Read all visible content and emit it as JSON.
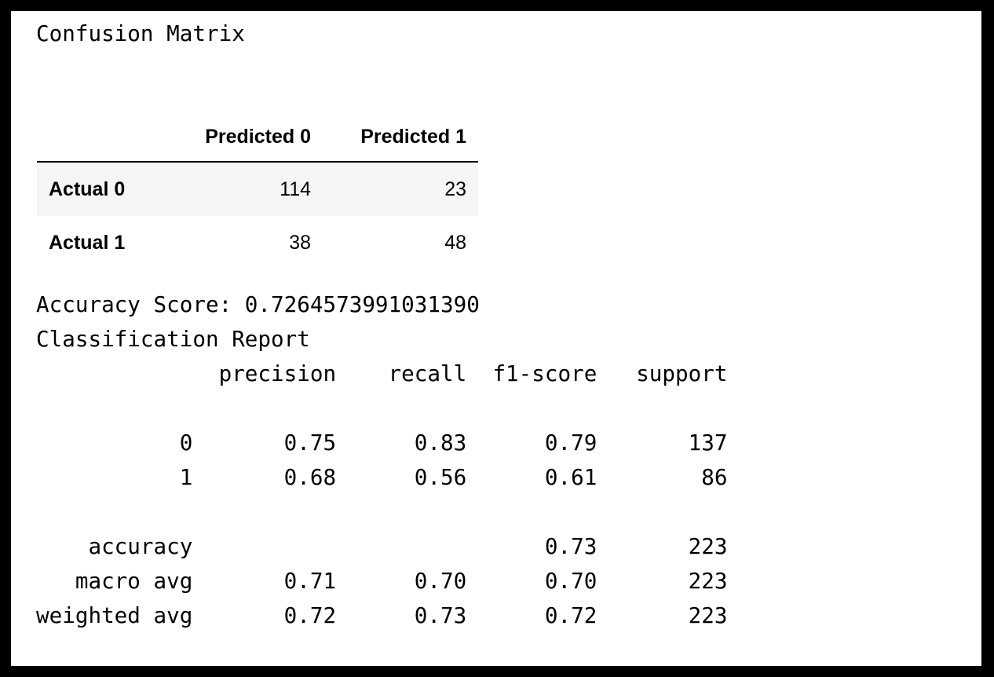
{
  "title": "Confusion Matrix",
  "confusion_matrix": {
    "columns": [
      "",
      "Predicted 0",
      "Predicted 1"
    ],
    "rows": [
      {
        "label": "Actual 0",
        "values": [
          "114",
          "23"
        ]
      },
      {
        "label": "Actual 1",
        "values": [
          "38",
          "48"
        ]
      }
    ]
  },
  "accuracy_line": "Accuracy Score: 0.7264573991031390",
  "report_lines": [
    "Classification Report",
    "              precision    recall  f1-score   support",
    "",
    "           0       0.75      0.83      0.79       137",
    "           1       0.68      0.56      0.61        86",
    "",
    "    accuracy                           0.73       223",
    "   macro avg       0.71      0.70      0.70       223",
    "weighted avg       0.72      0.73      0.72       223"
  ]
}
